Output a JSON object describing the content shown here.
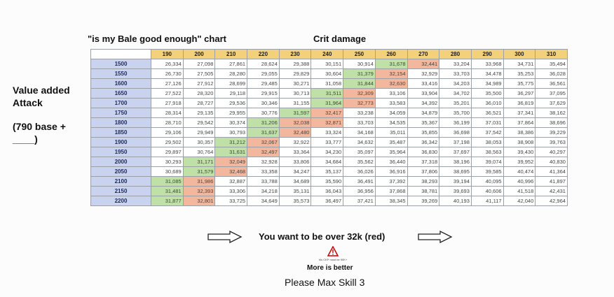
{
  "header": {
    "chart_title": "\"is my Bale good enough\" chart",
    "column_title": "Crit damage"
  },
  "side_label": {
    "line1": "Value added",
    "line2": "Attack",
    "line3": "(790 base +",
    "line4": "____)"
  },
  "footer": {
    "arrow_text": "You want to be over 32k (red)",
    "warning_note": "his CKP must be 90K+",
    "more_better": "More is better",
    "max_skill": "Please Max Skill 3"
  },
  "colors": {
    "header": "#f3d07a",
    "row_header": "#c9d3ef",
    "green": "#bfe0a6",
    "red": "#f2b79c"
  },
  "chart_data": {
    "type": "table",
    "columns": [
      "190",
      "200",
      "210",
      "220",
      "230",
      "240",
      "250",
      "260",
      "270",
      "280",
      "290",
      "300",
      "310"
    ],
    "rows": [
      {
        "label": "1500",
        "values": [
          "26,334",
          "27,098",
          "27,861",
          "28,624",
          "29,388",
          "30,151",
          "30,914",
          "31,678",
          "32,441",
          "33,204",
          "33,968",
          "34,731",
          "35,494"
        ]
      },
      {
        "label": "1550",
        "values": [
          "26,730",
          "27,505",
          "28,280",
          "29,055",
          "29,829",
          "30,604",
          "31,379",
          "32,154",
          "32,929",
          "33,703",
          "34,478",
          "35,253",
          "36,028"
        ]
      },
      {
        "label": "1600",
        "values": [
          "27,126",
          "27,912",
          "28,699",
          "29,485",
          "30,271",
          "31,058",
          "31,844",
          "32,630",
          "33,416",
          "34,203",
          "34,989",
          "35,775",
          "36,561"
        ]
      },
      {
        "label": "1650",
        "values": [
          "27,522",
          "28,320",
          "29,118",
          "29,915",
          "30,713",
          "31,511",
          "32,309",
          "33,106",
          "33,904",
          "34,702",
          "35,500",
          "36,297",
          "37,095"
        ]
      },
      {
        "label": "1700",
        "values": [
          "27,918",
          "28,727",
          "29,536",
          "30,346",
          "31,155",
          "31,964",
          "32,773",
          "33,583",
          "34,392",
          "35,201",
          "36,010",
          "36,819",
          "37,629"
        ]
      },
      {
        "label": "1750",
        "values": [
          "28,314",
          "29,135",
          "29,955",
          "30,776",
          "31,597",
          "32,417",
          "33,238",
          "34,059",
          "34,879",
          "35,700",
          "36,521",
          "37,341",
          "38,162"
        ]
      },
      {
        "label": "1800",
        "values": [
          "28,710",
          "29,542",
          "30,374",
          "31,206",
          "32,038",
          "32,871",
          "33,703",
          "34,535",
          "35,367",
          "36,199",
          "37,031",
          "37,864",
          "38,696"
        ]
      },
      {
        "label": "1850",
        "values": [
          "29,106",
          "29,949",
          "30,793",
          "31,637",
          "32,480",
          "33,324",
          "34,168",
          "35,011",
          "35,855",
          "36,698",
          "37,542",
          "38,386",
          "39,229"
        ]
      },
      {
        "label": "1900",
        "values": [
          "29,502",
          "30,357",
          "31,212",
          "32,067",
          "32,922",
          "33,777",
          "34,632",
          "35,487",
          "36,342",
          "37,198",
          "38,053",
          "38,908",
          "39,763"
        ]
      },
      {
        "label": "1950",
        "values": [
          "29,897",
          "30,764",
          "31,631",
          "32,497",
          "33,364",
          "34,230",
          "35,097",
          "35,964",
          "36,830",
          "37,697",
          "38,563",
          "39,430",
          "40,297"
        ]
      },
      {
        "label": "2000",
        "values": [
          "30,293",
          "31,171",
          "32,049",
          "32,928",
          "33,806",
          "34,684",
          "35,562",
          "36,440",
          "37,318",
          "38,196",
          "39,074",
          "39,952",
          "40,830"
        ]
      },
      {
        "label": "2050",
        "values": [
          "30,689",
          "31,579",
          "32,468",
          "33,358",
          "34,247",
          "35,137",
          "36,026",
          "36,916",
          "37,806",
          "38,695",
          "39,585",
          "40,474",
          "41,364"
        ]
      },
      {
        "label": "2100",
        "values": [
          "31,085",
          "31,986",
          "32,887",
          "33,788",
          "34,689",
          "35,590",
          "36,491",
          "37,392",
          "38,293",
          "39,194",
          "40,095",
          "40,996",
          "41,897"
        ]
      },
      {
        "label": "2150",
        "values": [
          "31,481",
          "32,393",
          "33,306",
          "34,218",
          "35,131",
          "36,043",
          "36,956",
          "37,868",
          "38,781",
          "39,693",
          "40,606",
          "41,518",
          "42,431"
        ]
      },
      {
        "label": "2200",
        "values": [
          "31,877",
          "32,801",
          "33,725",
          "34,649",
          "35,573",
          "36,497",
          "37,421",
          "38,345",
          "39,269",
          "40,193",
          "41,117",
          "42,040",
          "42,964"
        ]
      }
    ],
    "highlights": {
      "green": [
        [
          0,
          7
        ],
        [
          1,
          6
        ],
        [
          2,
          6
        ],
        [
          3,
          5
        ],
        [
          4,
          5
        ],
        [
          5,
          4
        ],
        [
          6,
          3
        ],
        [
          7,
          3
        ],
        [
          8,
          2
        ],
        [
          9,
          2
        ],
        [
          10,
          1
        ],
        [
          11,
          1
        ],
        [
          12,
          0
        ],
        [
          13,
          0
        ],
        [
          14,
          0
        ]
      ],
      "red": [
        [
          0,
          8
        ],
        [
          1,
          7
        ],
        [
          2,
          7
        ],
        [
          3,
          6
        ],
        [
          4,
          6
        ],
        [
          5,
          5
        ],
        [
          6,
          4
        ],
        [
          6,
          5
        ],
        [
          7,
          4
        ],
        [
          8,
          3
        ],
        [
          9,
          3
        ],
        [
          10,
          2
        ],
        [
          11,
          2
        ],
        [
          12,
          1
        ],
        [
          13,
          1
        ],
        [
          14,
          1
        ]
      ]
    }
  }
}
